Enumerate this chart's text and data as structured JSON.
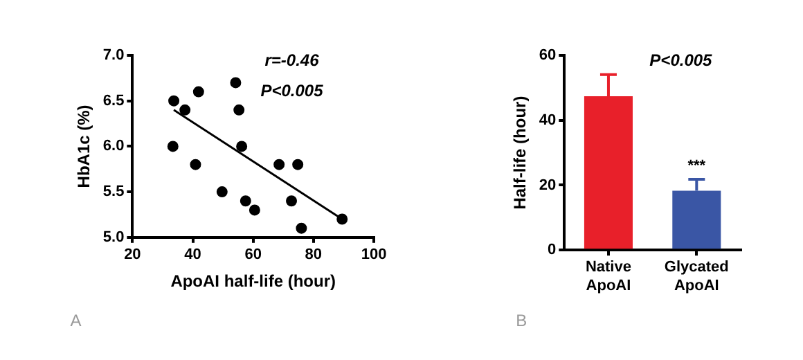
{
  "chart_data": [
    {
      "type": "scatter",
      "xlabel": "ApoAI half-life (hour)",
      "ylabel": "HbA1c (%)",
      "xlim": [
        20,
        100
      ],
      "xticks": [
        20,
        40,
        60,
        80,
        100
      ],
      "ylim": [
        5.0,
        7.0
      ],
      "yticks": [
        {
          "value": 5.0,
          "label": "5.0"
        },
        {
          "value": 5.5,
          "label": "5.5"
        },
        {
          "value": 6.0,
          "label": "6.0"
        },
        {
          "value": 6.5,
          "label": "6.5"
        },
        {
          "value": 7.0,
          "label": "7.0"
        }
      ],
      "grid": false,
      "legend": false,
      "series": [
        {
          "type": "scatter",
          "marker": "circle",
          "color": "#000000",
          "x": [
            33.7,
            37.4,
            41.9,
            54.2,
            55.3,
            33.4,
            56.2,
            40.9,
            68.6,
            74.8,
            49.7,
            57.5,
            60.5,
            72.7,
            76,
            89.5
          ],
          "values": [
            6.5,
            6.4,
            6.6,
            6.7,
            6.4,
            6.0,
            6.0,
            5.8,
            5.8,
            5.8,
            5.5,
            5.4,
            5.3,
            5.4,
            5.1,
            5.2
          ]
        },
        {
          "type": "line",
          "marker": "none",
          "color": "#000000",
          "x": [
            33.7,
            89.5
          ],
          "values": [
            6.4,
            5.2
          ]
        }
      ],
      "annotations": [
        "r=-0.46",
        "P<0.005",
        "A"
      ]
    },
    {
      "type": "bar",
      "ylabel": "Half-life (hour)",
      "categories": [
        "Native ApoAI",
        "Glycated ApoAI"
      ],
      "values": [
        47.4,
        18.3
      ],
      "colors": [
        "#e8202a",
        "#3a56a5"
      ],
      "errors": [
        [
          47.4,
          54.1
        ],
        [
          18.3,
          21.8
        ]
      ],
      "ylim": [
        0,
        60
      ],
      "yticks": [
        0,
        20,
        40,
        60
      ],
      "grid": false,
      "legend": false,
      "annotations": [
        "P<0.005",
        "B",
        {
          "text": "***",
          "x": "Glycated ApoAI",
          "y": 21.8
        }
      ]
    }
  ]
}
